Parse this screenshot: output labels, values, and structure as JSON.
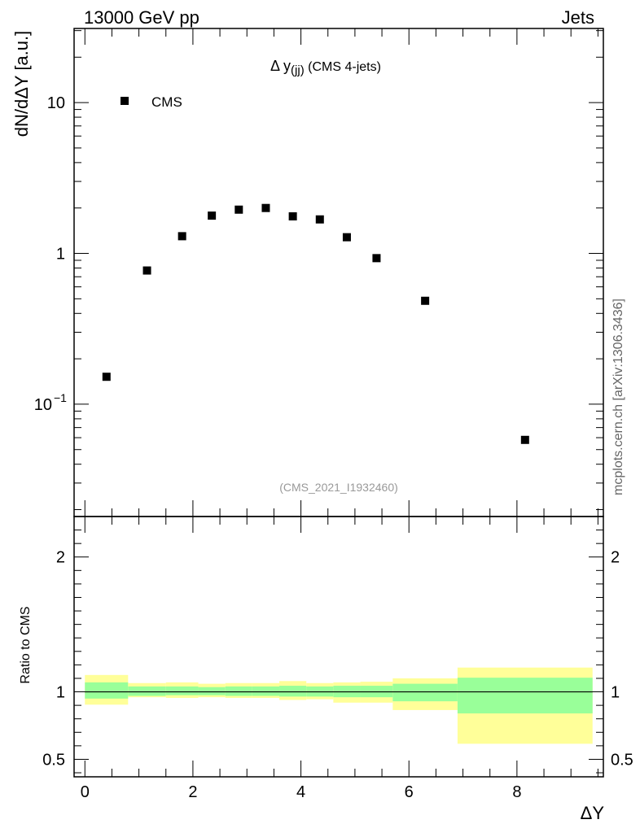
{
  "header": {
    "left_label": "13000 GeV pp",
    "right_label": "Jets"
  },
  "side_label": "mcplots.cern.ch [arXiv:1306.3436]",
  "analysis_label": "(CMS_2021_I1932460)",
  "chart_data": [
    {
      "type": "scatter",
      "title_main": "Δ y",
      "title_sub": "(jj)",
      "title_rest": " (CMS 4-jets)",
      "xlabel": "ΔY",
      "ylabel": "dN/dΔY [a.u.]",
      "yscale": "log",
      "xlim": [
        -0.2,
        9.6
      ],
      "ylim": [
        0.018,
        31
      ],
      "yticks_major": [
        0.1,
        1,
        10
      ],
      "ytick_labels": [
        "10",
        "1",
        "10"
      ],
      "ytick_exponent": "−1",
      "legend": {
        "position": "top-left",
        "entries": [
          "CMS"
        ]
      },
      "series": [
        {
          "name": "CMS",
          "marker": "square",
          "color": "#000000",
          "x": [
            0.4,
            1.15,
            1.8,
            2.35,
            2.85,
            3.35,
            3.85,
            4.35,
            4.85,
            5.4,
            6.3,
            8.15
          ],
          "y": [
            0.152,
            0.77,
            1.3,
            1.78,
            1.95,
            2.0,
            1.76,
            1.68,
            1.28,
            0.93,
            0.485,
            0.058
          ]
        }
      ]
    },
    {
      "type": "area",
      "ylabel": "Ratio to CMS",
      "xlabel": "ΔY",
      "xlim": [
        -0.2,
        9.6
      ],
      "ylim": [
        0.37,
        2.3
      ],
      "yticks": [
        0.5,
        1,
        2
      ],
      "ytick_labels": [
        "0.5",
        "1",
        "2"
      ],
      "xticks": [
        0,
        2,
        4,
        6,
        8
      ],
      "xtick_labels": [
        "0",
        "2",
        "4",
        "6",
        "8"
      ],
      "reference_line": 1,
      "bins": [
        {
          "x0": 0.0,
          "x1": 0.8,
          "green": [
            0.95,
            1.07
          ],
          "yellow": [
            0.905,
            1.125
          ]
        },
        {
          "x0": 0.8,
          "x1": 1.5,
          "green": [
            0.97,
            1.04
          ],
          "yellow": [
            0.96,
            1.065
          ]
        },
        {
          "x0": 1.5,
          "x1": 2.1,
          "green": [
            0.975,
            1.04
          ],
          "yellow": [
            0.955,
            1.07
          ]
        },
        {
          "x0": 2.1,
          "x1": 2.6,
          "green": [
            0.975,
            1.035
          ],
          "yellow": [
            0.96,
            1.06
          ]
        },
        {
          "x0": 2.6,
          "x1": 3.1,
          "green": [
            0.97,
            1.04
          ],
          "yellow": [
            0.955,
            1.065
          ]
        },
        {
          "x0": 3.1,
          "x1": 3.6,
          "green": [
            0.97,
            1.04
          ],
          "yellow": [
            0.955,
            1.065
          ]
        },
        {
          "x0": 3.6,
          "x1": 4.1,
          "green": [
            0.965,
            1.045
          ],
          "yellow": [
            0.94,
            1.08
          ]
        },
        {
          "x0": 4.1,
          "x1": 4.6,
          "green": [
            0.965,
            1.04
          ],
          "yellow": [
            0.945,
            1.065
          ]
        },
        {
          "x0": 4.6,
          "x1": 5.1,
          "green": [
            0.96,
            1.045
          ],
          "yellow": [
            0.92,
            1.07
          ]
        },
        {
          "x0": 5.1,
          "x1": 5.7,
          "green": [
            0.96,
            1.045
          ],
          "yellow": [
            0.92,
            1.075
          ]
        },
        {
          "x0": 5.7,
          "x1": 6.9,
          "green": [
            0.93,
            1.06
          ],
          "yellow": [
            0.865,
            1.1
          ]
        },
        {
          "x0": 6.9,
          "x1": 9.4,
          "green": [
            0.84,
            1.105
          ],
          "yellow": [
            0.615,
            1.18
          ]
        }
      ],
      "colors": {
        "green": "#99ff99",
        "yellow": "#ffff99"
      }
    }
  ]
}
